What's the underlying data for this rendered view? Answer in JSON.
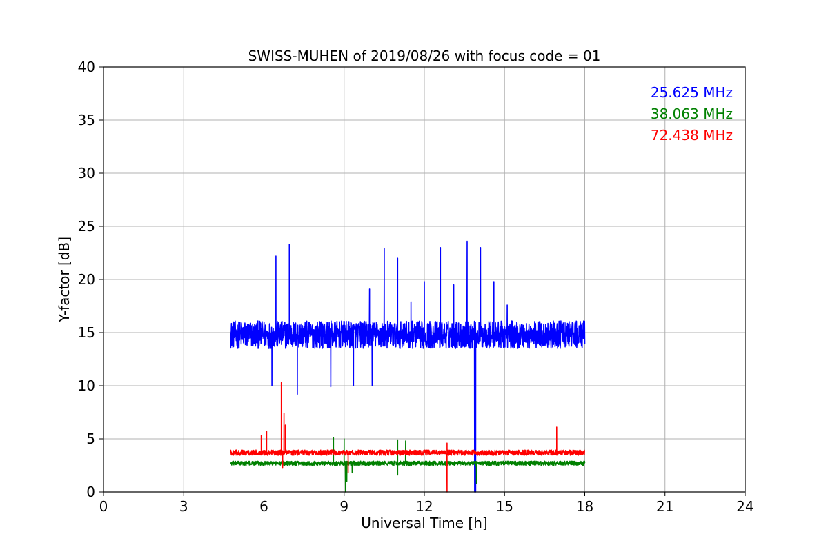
{
  "chart_data": {
    "type": "line",
    "title": "SWISS-MUHEN of 2019/08/26 with focus code = 01",
    "xlabel": "Universal Time [h]",
    "ylabel": "Y-factor [dB]",
    "xlim": [
      0,
      24
    ],
    "ylim": [
      0,
      40
    ],
    "xticks": [
      0,
      3,
      6,
      9,
      12,
      15,
      18,
      21,
      24
    ],
    "yticks": [
      0,
      5,
      10,
      15,
      20,
      25,
      30,
      35,
      40
    ],
    "grid": true,
    "legend_position": "top-right",
    "series": [
      {
        "name": "25.625 MHz",
        "color": "#0000ff",
        "baseline": 14.8,
        "noise": 1.3,
        "x_start": 4.75,
        "x_end": 18.0,
        "spikes": [
          [
            6.45,
            22.2
          ],
          [
            6.95,
            23.3
          ],
          [
            9.95,
            19.1
          ],
          [
            10.5,
            22.9
          ],
          [
            11.0,
            22.0
          ],
          [
            11.5,
            17.9
          ],
          [
            12.0,
            19.8
          ],
          [
            12.6,
            23.0
          ],
          [
            13.1,
            19.5
          ],
          [
            13.6,
            23.6
          ],
          [
            14.1,
            23.0
          ],
          [
            14.6,
            19.8
          ],
          [
            15.1,
            17.6
          ]
        ],
        "dips": [
          [
            6.3,
            10.0
          ],
          [
            7.25,
            9.2
          ],
          [
            8.5,
            9.9
          ],
          [
            9.35,
            10.0
          ],
          [
            10.05,
            10.0
          ],
          [
            13.88,
            0.0
          ],
          [
            13.92,
            0.0
          ]
        ]
      },
      {
        "name": "38.063 MHz",
        "color": "#008000",
        "baseline": 2.7,
        "noise": 0.2,
        "x_start": 4.75,
        "x_end": 18.0,
        "spikes": [
          [
            8.6,
            5.1
          ],
          [
            9.0,
            5.0
          ],
          [
            11.0,
            4.9
          ],
          [
            11.3,
            4.8
          ]
        ],
        "dips": [
          [
            9.05,
            0.0
          ],
          [
            9.1,
            1.0
          ],
          [
            9.3,
            1.8
          ],
          [
            11.0,
            1.6
          ],
          [
            13.95,
            0.8
          ]
        ]
      },
      {
        "name": "72.438 MHz",
        "color": "#ff0000",
        "baseline": 3.7,
        "noise": 0.25,
        "x_start": 4.75,
        "x_end": 18.0,
        "spikes": [
          [
            5.9,
            5.3
          ],
          [
            6.1,
            5.7
          ],
          [
            6.65,
            10.3
          ],
          [
            6.75,
            7.4
          ],
          [
            6.8,
            6.3
          ],
          [
            12.85,
            4.6
          ],
          [
            16.95,
            6.1
          ]
        ],
        "dips": [
          [
            6.7,
            2.3
          ],
          [
            9.15,
            1.8
          ],
          [
            12.85,
            0.0
          ]
        ]
      }
    ]
  }
}
